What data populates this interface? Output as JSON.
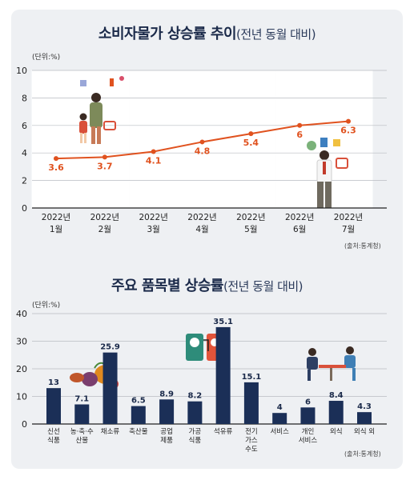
{
  "colors": {
    "line": "#e0521f",
    "bar": "#1b2f57",
    "title": "#1b2a4a",
    "card_bg": "#eef0f3",
    "stripe": "#ffffff"
  },
  "chart1": {
    "title": "소비자물가 상승률 추이",
    "subtitle": "(전년 동월 대비)",
    "unit": "(단위:%)",
    "source": "(출처:통계청)"
  },
  "chart2": {
    "title": "주요 품목별 상승률",
    "subtitle": "(전년 동월 대비)",
    "unit": "(단위:%)",
    "source": "(출처:통계청)"
  },
  "chart_data": [
    {
      "type": "line",
      "title": "소비자물가 상승률 추이",
      "subtitle": "(전년 동월 대비)",
      "categories": [
        [
          "2022년",
          "1월"
        ],
        [
          "2022년",
          "2월"
        ],
        [
          "2022년",
          "3월"
        ],
        [
          "2022년",
          "4월"
        ],
        [
          "2022년",
          "5월"
        ],
        [
          "2022년",
          "6월"
        ],
        [
          "2022년",
          "7월"
        ]
      ],
      "values": [
        3.6,
        3.7,
        4.1,
        4.8,
        5.4,
        6,
        6.3
      ],
      "labels": [
        "3.6",
        "3.7",
        "4.1",
        "4.8",
        "5.4",
        "6",
        "6.3"
      ],
      "ylim": [
        0,
        10
      ],
      "yticks": [
        0,
        2,
        4,
        6,
        8,
        10
      ],
      "grid": true,
      "ylabel": "(단위:%)"
    },
    {
      "type": "bar",
      "title": "주요 품목별 상승률",
      "subtitle": "(전년 동월 대비)",
      "categories": [
        [
          "신선",
          "식품"
        ],
        [
          "농·축·수",
          "산물"
        ],
        [
          "채소류"
        ],
        [
          "축산물"
        ],
        [
          "공업",
          "제품"
        ],
        [
          "가공",
          "식품"
        ],
        [
          "석유류"
        ],
        [
          "전기",
          "가스",
          "수도"
        ],
        [
          "서비스"
        ],
        [
          "개인",
          "서비스"
        ],
        [
          "외식"
        ],
        [
          "외식 외"
        ]
      ],
      "values": [
        13,
        7.1,
        25.9,
        6.5,
        8.9,
        8.2,
        35.1,
        15.1,
        4,
        6,
        8.4,
        4.3
      ],
      "labels": [
        "13",
        "7.1",
        "25.9",
        "6.5",
        "8.9",
        "8.2",
        "35.1",
        "15.1",
        "4",
        "6",
        "8.4",
        "4.3"
      ],
      "ylim": [
        0,
        40
      ],
      "yticks": [
        0,
        10,
        20,
        30,
        40
      ],
      "grid": true,
      "ylabel": "(단위:%)"
    }
  ]
}
